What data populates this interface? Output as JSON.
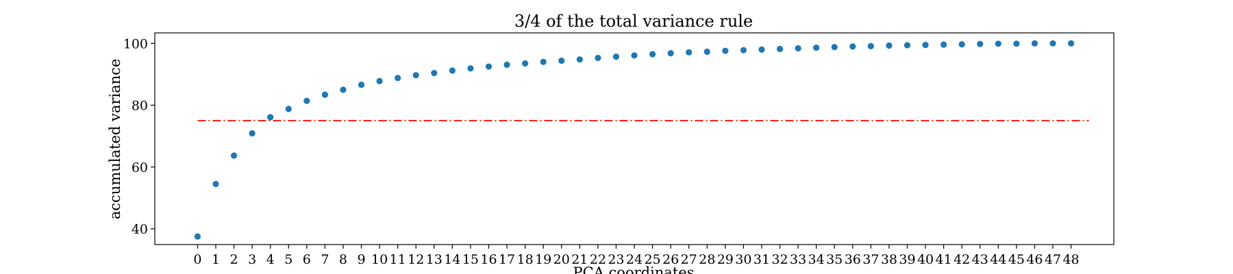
{
  "chart_data": {
    "type": "scatter",
    "title": "3/4 of the total variance rule",
    "xlabel": "PCA coordinates",
    "ylabel": "accumulated variance",
    "x": [
      0,
      1,
      2,
      3,
      4,
      5,
      6,
      7,
      8,
      9,
      10,
      11,
      12,
      13,
      14,
      15,
      16,
      17,
      18,
      19,
      20,
      21,
      22,
      23,
      24,
      25,
      26,
      27,
      28,
      29,
      30,
      31,
      32,
      33,
      34,
      35,
      36,
      37,
      38,
      39,
      40,
      41,
      42,
      43,
      44,
      45,
      46,
      47,
      48
    ],
    "y": [
      37.5,
      54.5,
      63.7,
      70.9,
      76.1,
      78.8,
      81.4,
      83.4,
      85.0,
      86.6,
      87.8,
      88.8,
      89.7,
      90.4,
      91.2,
      91.9,
      92.5,
      93.1,
      93.5,
      94.0,
      94.4,
      94.8,
      95.3,
      95.7,
      96.1,
      96.5,
      96.8,
      97.1,
      97.3,
      97.6,
      97.8,
      98.0,
      98.2,
      98.4,
      98.6,
      98.8,
      99.0,
      99.1,
      99.3,
      99.4,
      99.5,
      99.6,
      99.7,
      99.8,
      99.9,
      99.9,
      100.0,
      100.0,
      100.0
    ],
    "xticks": [
      "0",
      "1",
      "2",
      "3",
      "4",
      "5",
      "6",
      "7",
      "8",
      "9",
      "10",
      "11",
      "12",
      "13",
      "14",
      "15",
      "16",
      "17",
      "18",
      "19",
      "20",
      "21",
      "22",
      "23",
      "24",
      "25",
      "26",
      "27",
      "28",
      "29",
      "30",
      "31",
      "32",
      "33",
      "34",
      "35",
      "36",
      "37",
      "38",
      "39",
      "40",
      "41",
      "42",
      "43",
      "44",
      "45",
      "46",
      "47",
      "48"
    ],
    "yticks": [
      40,
      60,
      80,
      100
    ],
    "xlim": [
      -2.35,
      50.35
    ],
    "ylim": [
      34.9,
      103.4
    ],
    "threshold": {
      "value": 75,
      "x_start": 0,
      "x_end": 48,
      "color": "#ff0000",
      "style": "dash-dot"
    },
    "marker_color": "#1f77b4",
    "grid": false,
    "legend": "none"
  }
}
